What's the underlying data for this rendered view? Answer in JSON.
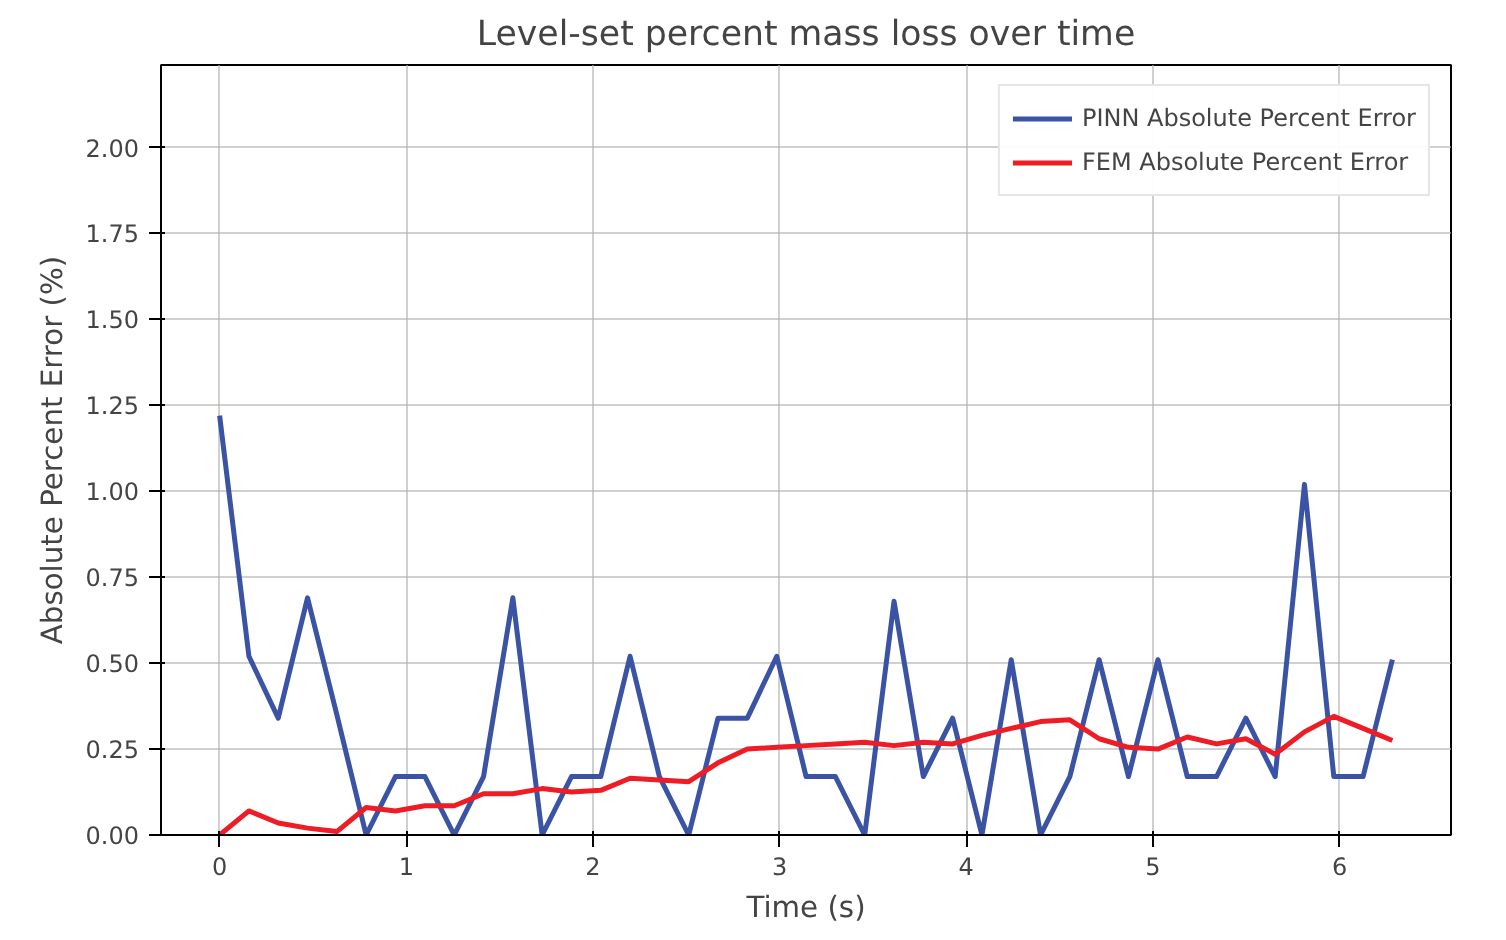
{
  "chart_data": {
    "type": "line",
    "title": "Level-set percent mass loss over time",
    "xlabel": "Time (s)",
    "ylabel": "Absolute Percent Error (%)",
    "x": [
      0,
      0.157,
      0.314,
      0.471,
      0.628,
      0.785,
      0.942,
      1.1,
      1.257,
      1.414,
      1.571,
      1.728,
      1.885,
      2.042,
      2.199,
      2.356,
      2.513,
      2.67,
      2.827,
      2.985,
      3.142,
      3.299,
      3.456,
      3.613,
      3.77,
      3.927,
      4.084,
      4.241,
      4.398,
      4.555,
      4.712,
      4.869,
      5.027,
      5.184,
      5.341,
      5.498,
      5.655,
      5.812,
      5.969,
      6.126,
      6.283
    ],
    "series": [
      {
        "name": "PINN Absolute Percent Error",
        "color": "#3a53a4",
        "values": [
          1.22,
          0.52,
          0.34,
          0.69,
          0.35,
          0,
          0.17,
          0.17,
          0,
          0.17,
          0.69,
          0,
          0.17,
          0.17,
          0.52,
          0.17,
          0,
          0.34,
          0.34,
          0.52,
          0.17,
          0.17,
          0,
          0.68,
          0.17,
          0.34,
          0,
          0.51,
          0,
          0.17,
          0.51,
          0.17,
          0.51,
          0.17,
          0.17,
          0.34,
          0.17,
          1.02,
          0.17,
          0.17,
          0.51
        ]
      },
      {
        "name": "FEM Absolute Percent Error",
        "color": "#ee1c25",
        "values": [
          0,
          0.07,
          0.035,
          0.02,
          0.01,
          0.08,
          0.07,
          0.085,
          0.085,
          0.12,
          0.12,
          0.135,
          0.125,
          0.13,
          0.165,
          0.16,
          0.155,
          0.21,
          0.25,
          0.255,
          0.26,
          0.265,
          0.27,
          0.26,
          0.27,
          0.265,
          0.29,
          0.31,
          0.33,
          0.335,
          0.28,
          0.255,
          0.25,
          0.285,
          0.265,
          0.28,
          0.235,
          0.3,
          0.345,
          0.31,
          0.275
        ]
      }
    ],
    "xlim": [
      -0.314,
      6.597
    ],
    "ylim": [
      0,
      2.24
    ],
    "xticks": [
      0,
      1,
      2,
      3,
      4,
      5,
      6
    ],
    "yticks": [
      {
        "value": 0,
        "label": "0.00"
      },
      {
        "value": 0.25,
        "label": "0.25"
      },
      {
        "value": 0.5,
        "label": "0.50"
      },
      {
        "value": 0.75,
        "label": "0.75"
      },
      {
        "value": 1,
        "label": "1.00"
      },
      {
        "value": 1.25,
        "label": "1.25"
      },
      {
        "value": 1.5,
        "label": "1.50"
      },
      {
        "value": 1.75,
        "label": "1.75"
      },
      {
        "value": 2,
        "label": "2.00"
      }
    ],
    "grid": true,
    "legend": "top right",
    "line_style": "solid",
    "marker": "none"
  }
}
